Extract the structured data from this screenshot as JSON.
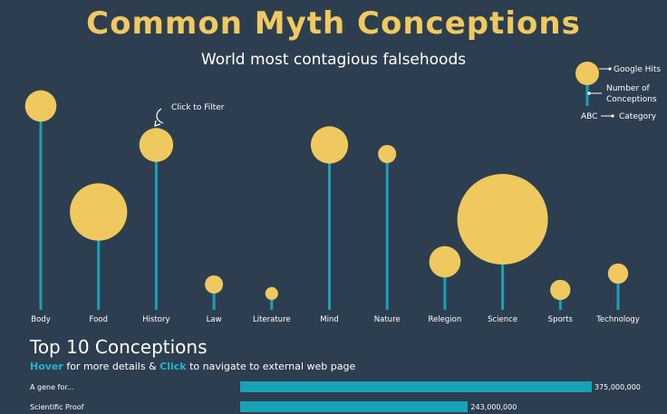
{
  "title": "Common Myth Conceptions",
  "subtitle": "World most contagious falsehoods",
  "filter_hint": "Click to Filter",
  "legend": {
    "google_hits": "Google Hits",
    "number_of_conceptions_1": "Number of",
    "number_of_conceptions_2": "Conceptions",
    "abc": "ABC",
    "category": "Category"
  },
  "top10": {
    "title": "Top 10 Conceptions",
    "sub_hover": "Hover",
    "sub_mid": " for more details & ",
    "sub_click": "Click",
    "sub_end": " to navigate to external web page"
  },
  "colors": {
    "background": "#2d3e50",
    "bubble": "#f0c95e",
    "stem": "#17a2b8",
    "accent": "#23b3d3"
  },
  "chart_data": [
    {
      "type": "lollipop",
      "categories": [
        "Body",
        "Food",
        "History",
        "Law",
        "Literature",
        "Mind",
        "Nature",
        "Relegion",
        "Science",
        "Sports",
        "Technology"
      ],
      "series": [
        {
          "name": "Number of Conceptions",
          "values": [
            225,
            108,
            182,
            28,
            18,
            182,
            172,
            53,
            100,
            22,
            40
          ]
        },
        {
          "name": "Google Hits",
          "values": [
            12,
            40,
            14,
            4,
            2,
            17,
            4,
            12,
            100,
            5,
            5
          ]
        }
      ]
    },
    {
      "type": "bar",
      "categories": [
        "A gene for...",
        "Scientific Proof"
      ],
      "values": [
        375000000,
        243000000
      ],
      "value_labels": [
        "375,000,000",
        "243,000,000"
      ]
    }
  ]
}
